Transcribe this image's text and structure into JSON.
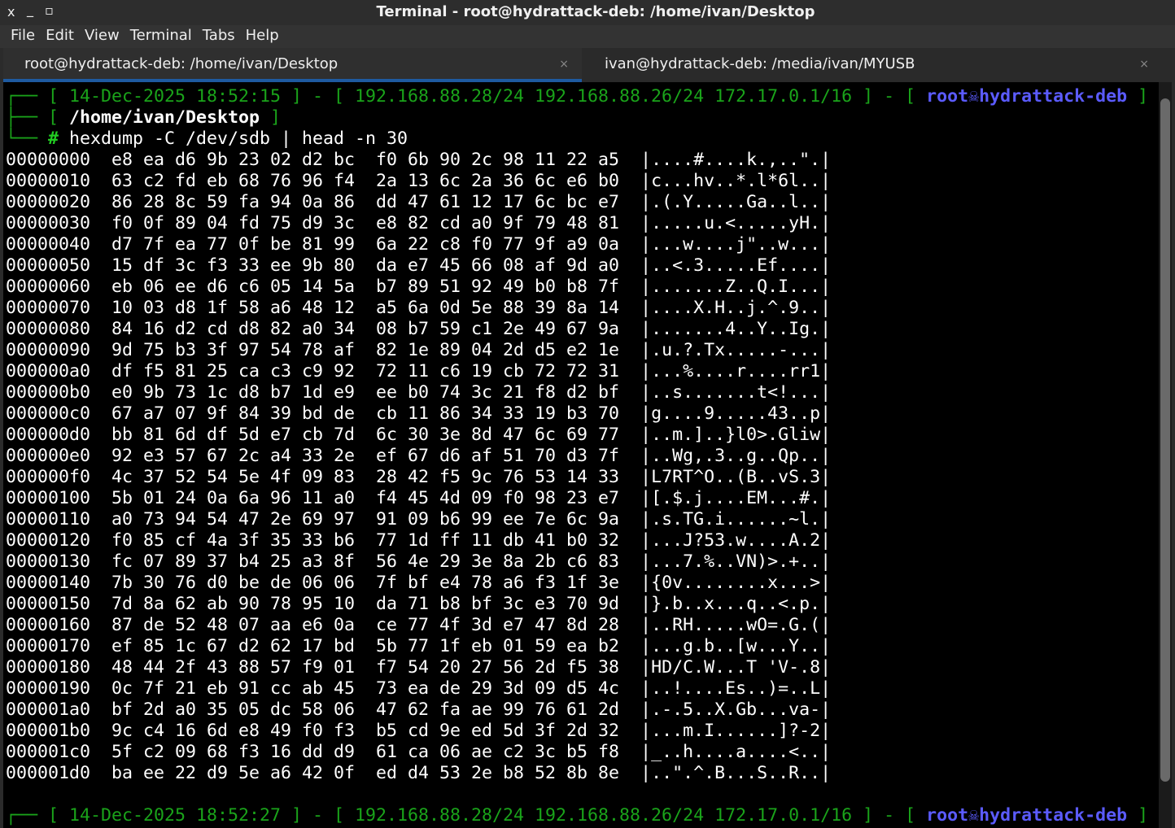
{
  "window": {
    "title": "Terminal - root@hydrattack-deb: /home/ivan/Desktop",
    "close": "x",
    "minimize": "_",
    "maximize": "▫"
  },
  "menu": [
    "File",
    "Edit",
    "View",
    "Terminal",
    "Tabs",
    "Help"
  ],
  "tabs": [
    {
      "label": "root@hydrattack-deb: /home/ivan/Desktop",
      "active": true,
      "close": "×"
    },
    {
      "label": "ivan@hydrattack-deb: /media/ivan/MYUSB",
      "active": false,
      "close": "×"
    }
  ],
  "colors": {
    "prompt_green": "#1aa31a",
    "user_blue": "#5b5bff",
    "tab_accent": "#1e5aa0",
    "background": "#000000"
  },
  "prompt": {
    "line1_prefix": "┌── [ ",
    "datetime": "14-Dec-2025 18:52:15",
    "sep1": " ] - [ ",
    "ips": "192.168.88.28/24 192.168.88.26/24 172.17.0.1/16",
    "sep2": " ] - [ ",
    "user": "root",
    "skull_icon": "☠",
    "host": "hydrattack-deb",
    "end": " ]",
    "line2_prefix": "├── [ ",
    "cwd": "/home/ivan/Desktop",
    "line2_end": " ]",
    "line3_prefix": "└── ",
    "hash": "#",
    "command": " hexdump -C /dev/sdb | head -n 30"
  },
  "hexdump": [
    {
      "offset": "00000000",
      "hex": "e8 ea d6 9b 23 02 d2 bc  f0 6b 90 2c 98 11 22 a5",
      "ascii": "|....#....k.,..\".|"
    },
    {
      "offset": "00000010",
      "hex": "63 c2 fd eb 68 76 96 f4  2a 13 6c 2a 36 6c e6 b0",
      "ascii": "|c...hv..*.l*6l..|"
    },
    {
      "offset": "00000020",
      "hex": "86 28 8c 59 fa 94 0a 86  dd 47 61 12 17 6c bc e7",
      "ascii": "|.(.Y.....Ga..l..|"
    },
    {
      "offset": "00000030",
      "hex": "f0 0f 89 04 fd 75 d9 3c  e8 82 cd a0 9f 79 48 81",
      "ascii": "|.....u.<.....yH.|"
    },
    {
      "offset": "00000040",
      "hex": "d7 7f ea 77 0f be 81 99  6a 22 c8 f0 77 9f a9 0a",
      "ascii": "|...w....j\"..w...|"
    },
    {
      "offset": "00000050",
      "hex": "15 df 3c f3 33 ee 9b 80  da e7 45 66 08 af 9d a0",
      "ascii": "|..<.3.....Ef....|"
    },
    {
      "offset": "00000060",
      "hex": "eb 06 ee d6 c6 05 14 5a  b7 89 51 92 49 b0 b8 7f",
      "ascii": "|.......Z..Q.I...|"
    },
    {
      "offset": "00000070",
      "hex": "10 03 d8 1f 58 a6 48 12  a5 6a 0d 5e 88 39 8a 14",
      "ascii": "|....X.H..j.^.9..|"
    },
    {
      "offset": "00000080",
      "hex": "84 16 d2 cd d8 82 a0 34  08 b7 59 c1 2e 49 67 9a",
      "ascii": "|.......4..Y..Ig.|"
    },
    {
      "offset": "00000090",
      "hex": "9d 75 b3 3f 97 54 78 af  82 1e 89 04 2d d5 e2 1e",
      "ascii": "|.u.?.Tx.....-...|"
    },
    {
      "offset": "000000a0",
      "hex": "df f5 81 25 ca c3 c9 92  72 11 c6 19 cb 72 72 31",
      "ascii": "|...%....r....rr1|"
    },
    {
      "offset": "000000b0",
      "hex": "e0 9b 73 1c d8 b7 1d e9  ee b0 74 3c 21 f8 d2 bf",
      "ascii": "|..s.......t<!...|"
    },
    {
      "offset": "000000c0",
      "hex": "67 a7 07 9f 84 39 bd de  cb 11 86 34 33 19 b3 70",
      "ascii": "|g....9.....43..p|"
    },
    {
      "offset": "000000d0",
      "hex": "bb 81 6d df 5d e7 cb 7d  6c 30 3e 8d 47 6c 69 77",
      "ascii": "|..m.]..}l0>.Gliw|"
    },
    {
      "offset": "000000e0",
      "hex": "92 e3 57 67 2c a4 33 2e  ef 67 d6 af 51 70 d3 7f",
      "ascii": "|..Wg,.3..g..Qp..|"
    },
    {
      "offset": "000000f0",
      "hex": "4c 37 52 54 5e 4f 09 83  28 42 f5 9c 76 53 14 33",
      "ascii": "|L7RT^O..(B..vS.3|"
    },
    {
      "offset": "00000100",
      "hex": "5b 01 24 0a 6a 96 11 a0  f4 45 4d 09 f0 98 23 e7",
      "ascii": "|[.$.j....EM...#.|"
    },
    {
      "offset": "00000110",
      "hex": "a0 73 94 54 47 2e 69 97  91 09 b6 99 ee 7e 6c 9a",
      "ascii": "|.s.TG.i......~l.|"
    },
    {
      "offset": "00000120",
      "hex": "f0 85 cf 4a 3f 35 33 b6  77 1d ff 11 db 41 b0 32",
      "ascii": "|...J?53.w....A.2|"
    },
    {
      "offset": "00000130",
      "hex": "fc 07 89 37 b4 25 a3 8f  56 4e 29 3e 8a 2b c6 83",
      "ascii": "|...7.%..VN)>.+..|"
    },
    {
      "offset": "00000140",
      "hex": "7b 30 76 d0 be de 06 06  7f bf e4 78 a6 f3 1f 3e",
      "ascii": "|{0v........x...>|"
    },
    {
      "offset": "00000150",
      "hex": "7d 8a 62 ab 90 78 95 10  da 71 b8 bf 3c e3 70 9d",
      "ascii": "|}.b..x...q..<.p.|"
    },
    {
      "offset": "00000160",
      "hex": "87 de 52 48 07 aa e6 0a  ce 77 4f 3d e7 47 8d 28",
      "ascii": "|..RH.....wO=.G.(|"
    },
    {
      "offset": "00000170",
      "hex": "ef 85 1c 67 d2 62 17 bd  5b 77 1f eb 01 59 ea b2",
      "ascii": "|...g.b..[w...Y..|"
    },
    {
      "offset": "00000180",
      "hex": "48 44 2f 43 88 57 f9 01  f7 54 20 27 56 2d f5 38",
      "ascii": "|HD/C.W...T 'V-.8|"
    },
    {
      "offset": "00000190",
      "hex": "0c 7f 21 eb 91 cc ab 45  73 ea de 29 3d 09 d5 4c",
      "ascii": "|..!....Es..)=..L|"
    },
    {
      "offset": "000001a0",
      "hex": "bf 2d a0 35 05 dc 58 06  47 62 fa ae 99 76 61 2d",
      "ascii": "|.-.5..X.Gb...va-|"
    },
    {
      "offset": "000001b0",
      "hex": "9c c4 16 6d e8 49 f0 f3  b5 cd 9e ed 5d 3f 2d 32",
      "ascii": "|...m.I......]?-2|"
    },
    {
      "offset": "000001c0",
      "hex": "5f c2 09 68 f3 16 dd d9  61 ca 06 ae c2 3c b5 f8",
      "ascii": "|_..h....a....<..|"
    },
    {
      "offset": "000001d0",
      "hex": "ba ee 22 d9 5e a6 42 0f  ed d4 53 2e b8 52 8b 8e",
      "ascii": "|..\".^.B...S..R..|"
    }
  ],
  "next_prompt": {
    "line1_prefix": "┌── [ ",
    "datetime": "14-Dec-2025 18:52:27",
    "sep1": " ] - [ ",
    "ips": "192.168.88.28/24 192.168.88.26/24 172.17.0.1/16",
    "sep2": " ] - [ ",
    "user": "root",
    "skull_icon": "☠",
    "host": "hydrattack-deb",
    "end": " ]"
  }
}
